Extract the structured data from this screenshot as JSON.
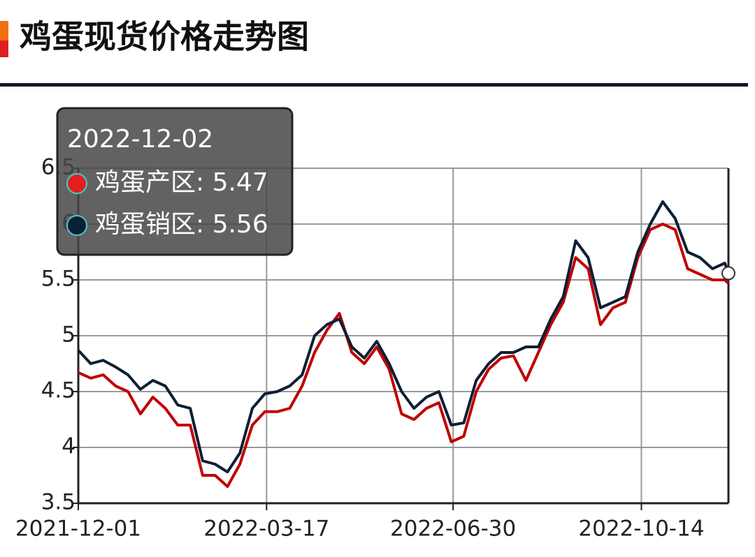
{
  "chart_data": {
    "type": "line",
    "title": "鸡蛋现货价格走势图",
    "x": [
      "2021-12-01",
      "2021-12-08",
      "2021-12-15",
      "2021-12-22",
      "2021-12-29",
      "2022-01-05",
      "2022-01-12",
      "2022-01-19",
      "2022-01-26",
      "2022-02-02",
      "2022-02-09",
      "2022-02-16",
      "2022-02-23",
      "2022-03-02",
      "2022-03-09",
      "2022-03-16",
      "2022-03-23",
      "2022-03-30",
      "2022-04-06",
      "2022-04-13",
      "2022-04-20",
      "2022-04-27",
      "2022-05-04",
      "2022-05-11",
      "2022-05-18",
      "2022-05-25",
      "2022-06-01",
      "2022-06-08",
      "2022-06-15",
      "2022-06-22",
      "2022-06-29",
      "2022-07-06",
      "2022-07-13",
      "2022-07-20",
      "2022-07-27",
      "2022-08-03",
      "2022-08-10",
      "2022-08-17",
      "2022-08-24",
      "2022-08-31",
      "2022-09-07",
      "2022-09-14",
      "2022-09-21",
      "2022-09-28",
      "2022-10-05",
      "2022-10-12",
      "2022-10-19",
      "2022-10-26",
      "2022-11-02",
      "2022-11-09",
      "2022-11-16",
      "2022-11-23",
      "2022-11-30",
      "2022-12-02"
    ],
    "series": [
      {
        "name": "鸡蛋产区",
        "color": "#c00000",
        "values": [
          4.67,
          4.62,
          4.65,
          4.55,
          4.5,
          4.3,
          4.45,
          4.35,
          4.2,
          4.2,
          3.75,
          3.75,
          3.65,
          3.85,
          4.2,
          4.32,
          4.32,
          4.35,
          4.55,
          4.85,
          5.05,
          5.2,
          4.85,
          4.75,
          4.9,
          4.7,
          4.3,
          4.25,
          4.35,
          4.4,
          4.05,
          4.1,
          4.5,
          4.7,
          4.8,
          4.82,
          4.6,
          4.85,
          5.1,
          5.3,
          5.7,
          5.6,
          5.1,
          5.25,
          5.3,
          5.7,
          5.95,
          6.0,
          5.95,
          5.6,
          5.55,
          5.5,
          5.5,
          5.47
        ]
      },
      {
        "name": "鸡蛋销区",
        "color": "#0d1f33",
        "values": [
          4.87,
          4.75,
          4.78,
          4.72,
          4.65,
          4.52,
          4.6,
          4.55,
          4.38,
          4.35,
          3.88,
          3.85,
          3.78,
          3.95,
          4.35,
          4.48,
          4.5,
          4.55,
          4.65,
          5.0,
          5.1,
          5.15,
          4.9,
          4.8,
          4.95,
          4.75,
          4.5,
          4.35,
          4.45,
          4.5,
          4.2,
          4.22,
          4.6,
          4.75,
          4.85,
          4.85,
          4.9,
          4.9,
          5.15,
          5.35,
          5.85,
          5.7,
          5.25,
          5.3,
          5.35,
          5.75,
          6.0,
          6.2,
          6.05,
          5.75,
          5.7,
          5.6,
          5.65,
          5.56
        ]
      }
    ],
    "xlim": [
      "2021-12-01",
      "2022-12-02"
    ],
    "xticks": [
      "2021-12-01",
      "2022-03-17",
      "2022-06-30",
      "2022-10-14"
    ],
    "ylim": [
      3.5,
      6.5
    ],
    "yticks": [
      3.5,
      4,
      4.5,
      5,
      5.5,
      6,
      6.5
    ],
    "grid": true,
    "tooltip": {
      "title": "2022-12-02",
      "entries": [
        "鸡蛋产区: 5.47",
        "鸡蛋销区: 5.56"
      ]
    }
  }
}
